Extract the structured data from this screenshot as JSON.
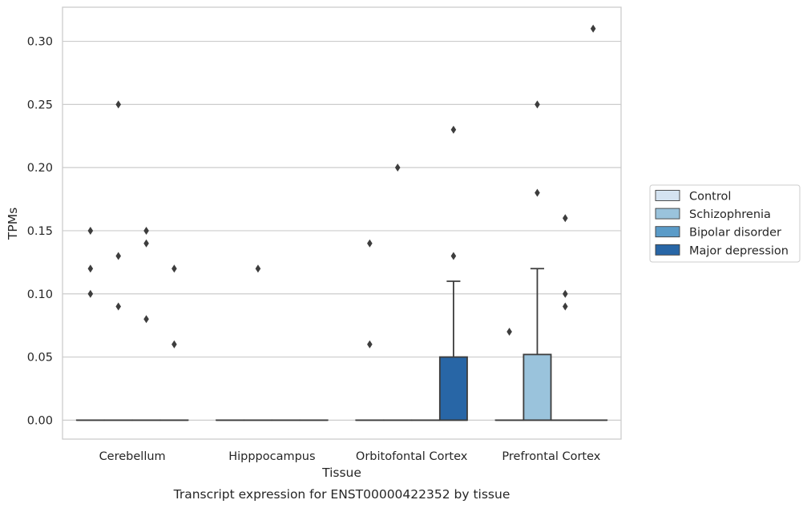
{
  "chart_data": {
    "type": "box",
    "title": "",
    "caption": "Transcript expression for ENST00000422352 by tissue",
    "xlabel": "Tissue",
    "ylabel": "TPMs",
    "ylim": [
      -0.015,
      0.327
    ],
    "yticks": [
      0.0,
      0.05,
      0.1,
      0.15,
      0.2,
      0.25,
      0.3
    ],
    "ytick_labels": [
      "0.00",
      "0.05",
      "0.10",
      "0.15",
      "0.20",
      "0.25",
      "0.30"
    ],
    "grid": "horizontal",
    "legend_position": "right",
    "categories": [
      "Cerebellum",
      "Hipppocampus",
      "Orbitofontal Cortex",
      "Prefrontal Cortex"
    ],
    "series": [
      {
        "name": "Control",
        "color": "#d4e3f1",
        "boxes": [
          {
            "category": "Cerebellum",
            "q1": 0,
            "median": 0,
            "q3": 0,
            "whisker_low": 0,
            "whisker_high": 0,
            "outliers": [
              0.15,
              0.12,
              0.1
            ]
          },
          {
            "category": "Hipppocampus",
            "q1": 0,
            "median": 0,
            "q3": 0,
            "whisker_low": 0,
            "whisker_high": 0,
            "outliers": []
          },
          {
            "category": "Orbitofontal Cortex",
            "q1": 0,
            "median": 0,
            "q3": 0,
            "whisker_low": 0,
            "whisker_high": 0,
            "outliers": [
              0.14,
              0.06
            ]
          },
          {
            "category": "Prefrontal Cortex",
            "q1": 0,
            "median": 0,
            "q3": 0,
            "whisker_low": 0,
            "whisker_high": 0,
            "outliers": [
              0.07
            ]
          }
        ]
      },
      {
        "name": "Schizophrenia",
        "color": "#9ac3dc",
        "boxes": [
          {
            "category": "Cerebellum",
            "q1": 0,
            "median": 0,
            "q3": 0,
            "whisker_low": 0,
            "whisker_high": 0,
            "outliers": [
              0.25,
              0.13,
              0.09
            ]
          },
          {
            "category": "Hipppocampus",
            "q1": 0,
            "median": 0,
            "q3": 0,
            "whisker_low": 0,
            "whisker_high": 0,
            "outliers": [
              0.12
            ]
          },
          {
            "category": "Orbitofontal Cortex",
            "q1": 0,
            "median": 0,
            "q3": 0,
            "whisker_low": 0,
            "whisker_high": 0,
            "outliers": [
              0.2
            ]
          },
          {
            "category": "Prefrontal Cortex",
            "q1": 0,
            "median": 0,
            "q3": 0.052,
            "whisker_low": 0,
            "whisker_high": 0.12,
            "outliers": [
              0.25,
              0.18
            ]
          }
        ]
      },
      {
        "name": "Bipolar disorder",
        "color": "#5a9bc8",
        "boxes": [
          {
            "category": "Cerebellum",
            "q1": 0,
            "median": 0,
            "q3": 0,
            "whisker_low": 0,
            "whisker_high": 0,
            "outliers": [
              0.15,
              0.14,
              0.08
            ]
          },
          {
            "category": "Hipppocampus",
            "q1": 0,
            "median": 0,
            "q3": 0,
            "whisker_low": 0,
            "whisker_high": 0,
            "outliers": []
          },
          {
            "category": "Orbitofontal Cortex",
            "q1": 0,
            "median": 0,
            "q3": 0,
            "whisker_low": 0,
            "whisker_high": 0,
            "outliers": []
          },
          {
            "category": "Prefrontal Cortex",
            "q1": 0,
            "median": 0,
            "q3": 0,
            "whisker_low": 0,
            "whisker_high": 0,
            "outliers": [
              0.16,
              0.1,
              0.09
            ]
          }
        ]
      },
      {
        "name": "Major depression",
        "color": "#2866a6",
        "boxes": [
          {
            "category": "Cerebellum",
            "q1": 0,
            "median": 0,
            "q3": 0,
            "whisker_low": 0,
            "whisker_high": 0,
            "outliers": [
              0.12,
              0.06
            ]
          },
          {
            "category": "Hipppocampus",
            "q1": 0,
            "median": 0,
            "q3": 0,
            "whisker_low": 0,
            "whisker_high": 0,
            "outliers": []
          },
          {
            "category": "Orbitofontal Cortex",
            "q1": 0,
            "median": 0,
            "q3": 0.05,
            "whisker_low": 0,
            "whisker_high": 0.11,
            "outliers": [
              0.23,
              0.13
            ]
          },
          {
            "category": "Prefrontal Cortex",
            "q1": 0,
            "median": 0,
            "q3": 0,
            "whisker_low": 0,
            "whisker_high": 0,
            "outliers": [
              0.31
            ]
          }
        ]
      }
    ]
  }
}
